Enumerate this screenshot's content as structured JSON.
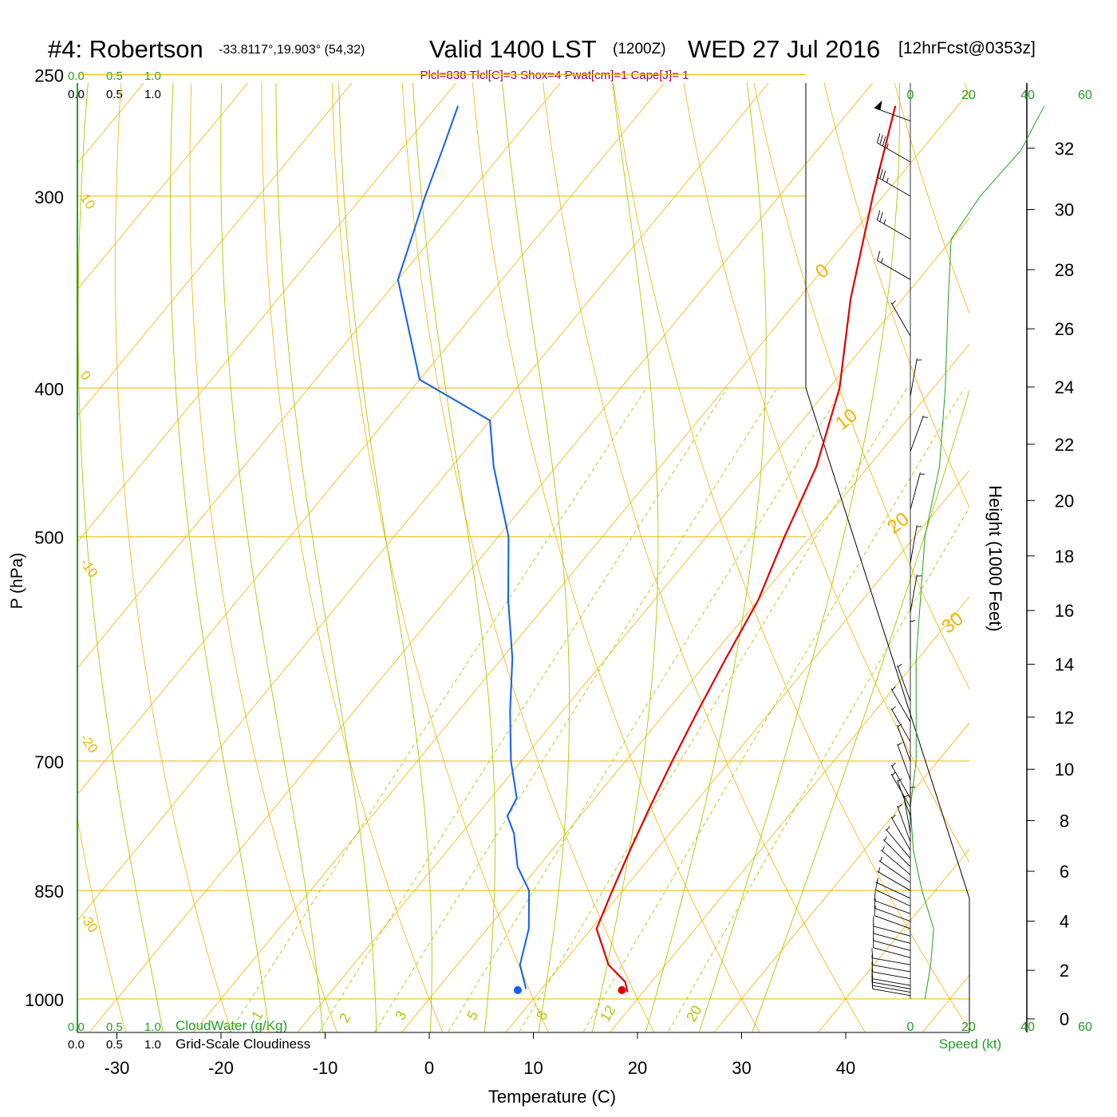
{
  "header": {
    "station": "#4: Robertson",
    "coords": "-33.8117°,19.903° (54,32)",
    "valid": "Valid 1400 LST",
    "zulu": "(1200Z)",
    "date": "WED 27 Jul 2016",
    "forecast": "[12hrFcst@0353z]",
    "indices": "Plcl=838 Tlcl[C]=3 Shox=4 Pwat[cm]=1 Cape[J]= 1"
  },
  "colors": {
    "isobar": "#f0b400",
    "dry_adiabat": "#f0b400",
    "moist_adiabat": "#a8cc00",
    "mixing_ratio": "#a8cc00",
    "temperature": "#e00000",
    "dewpoint": "#1060f0",
    "speed_axis": "#20a020",
    "title_indices": "#a0005a"
  },
  "chart_data": {
    "type": "line",
    "xlabel": "Temperature (C)",
    "ylabel": "P (hPa)",
    "y2label": "Height (1000 Feet)",
    "x_ticks": [
      -30,
      -20,
      -10,
      0,
      10,
      20,
      30,
      40
    ],
    "p_ticks": [
      250,
      300,
      400,
      500,
      700,
      850,
      1000
    ],
    "height_ticks": [
      0,
      2,
      4,
      6,
      8,
      10,
      12,
      14,
      16,
      18,
      20,
      22,
      24,
      26,
      28,
      30,
      32
    ],
    "cloud_scale_top": {
      "green": [
        "0.0",
        "0.5",
        "1.0"
      ],
      "black": [
        "0.0",
        "0.5",
        "1.0"
      ]
    },
    "cloud_scale_bottom": {
      "green": [
        "0.0",
        "0.5",
        "1.0"
      ],
      "black": [
        "0.0",
        "0.5",
        "1.0"
      ],
      "cloudwater_label": "CloudWater (g/Kg)",
      "cloudiness_label": "Grid-Scale Cloudiness"
    },
    "speed_ticks": [
      "0",
      "20",
      "40",
      "60"
    ],
    "speed_label": "Speed (kt)",
    "dry_adiabat_labels": [
      "10",
      "0",
      "-10",
      "-20",
      "-30"
    ],
    "upper_labels": [
      "0",
      "10",
      "20",
      "30"
    ],
    "mixing_ratio_labels": [
      "1",
      "2",
      "3",
      "5",
      "8",
      "12",
      "20"
    ],
    "series": [
      {
        "name": "Temperature",
        "unit": "C",
        "points": [
          [
            990,
            18.5
          ],
          [
            975,
            17.5
          ],
          [
            950,
            14.5
          ],
          [
            900,
            10.5
          ],
          [
            850,
            9
          ],
          [
            800,
            7.5
          ],
          [
            750,
            6
          ],
          [
            700,
            4.5
          ],
          [
            650,
            3
          ],
          [
            600,
            1.5
          ],
          [
            550,
            0
          ],
          [
            500,
            -2.5
          ],
          [
            450,
            -5
          ],
          [
            400,
            -9
          ],
          [
            350,
            -15
          ],
          [
            300,
            -21
          ],
          [
            262,
            -26
          ]
        ]
      },
      {
        "name": "Dewpoint",
        "unit": "C",
        "points": [
          [
            985,
            8.5
          ],
          [
            950,
            6
          ],
          [
            900,
            4
          ],
          [
            850,
            1
          ],
          [
            820,
            -2
          ],
          [
            780,
            -5
          ],
          [
            760,
            -7
          ],
          [
            740,
            -7.5
          ],
          [
            700,
            -11
          ],
          [
            650,
            -15
          ],
          [
            600,
            -19
          ],
          [
            550,
            -24
          ],
          [
            500,
            -29
          ],
          [
            450,
            -36
          ],
          [
            420,
            -40
          ],
          [
            395,
            -50
          ],
          [
            340,
            -60
          ],
          [
            300,
            -64
          ],
          [
            280,
            -66
          ],
          [
            262,
            -68
          ]
        ]
      }
    ],
    "surface_temperature": 18.5,
    "surface_dewpoint": 8.5,
    "wind_speed_profile": [
      [
        1000,
        5
      ],
      [
        950,
        7
      ],
      [
        900,
        8
      ],
      [
        850,
        4
      ],
      [
        800,
        1
      ],
      [
        750,
        0
      ],
      [
        700,
        2
      ],
      [
        600,
        2
      ],
      [
        500,
        5
      ],
      [
        450,
        10
      ],
      [
        400,
        12
      ],
      [
        350,
        13
      ],
      [
        320,
        14
      ],
      [
        300,
        24
      ],
      [
        280,
        38
      ],
      [
        262,
        46
      ]
    ],
    "wind_barbs": [
      {
        "p": 995,
        "dir": 280,
        "spd": 10
      },
      {
        "p": 990,
        "dir": 280,
        "spd": 10
      },
      {
        "p": 985,
        "dir": 280,
        "spd": 10
      },
      {
        "p": 980,
        "dir": 280,
        "spd": 10
      },
      {
        "p": 970,
        "dir": 280,
        "spd": 10
      },
      {
        "p": 960,
        "dir": 280,
        "spd": 10
      },
      {
        "p": 950,
        "dir": 280,
        "spd": 10
      },
      {
        "p": 940,
        "dir": 285,
        "spd": 10
      },
      {
        "p": 930,
        "dir": 285,
        "spd": 10
      },
      {
        "p": 920,
        "dir": 285,
        "spd": 10
      },
      {
        "p": 910,
        "dir": 285,
        "spd": 10
      },
      {
        "p": 900,
        "dir": 290,
        "spd": 10
      },
      {
        "p": 890,
        "dir": 290,
        "spd": 10
      },
      {
        "p": 880,
        "dir": 290,
        "spd": 10
      },
      {
        "p": 870,
        "dir": 295,
        "spd": 10
      },
      {
        "p": 860,
        "dir": 295,
        "spd": 5
      },
      {
        "p": 850,
        "dir": 300,
        "spd": 5
      },
      {
        "p": 840,
        "dir": 305,
        "spd": 5
      },
      {
        "p": 830,
        "dir": 310,
        "spd": 5
      },
      {
        "p": 820,
        "dir": 315,
        "spd": 5
      },
      {
        "p": 810,
        "dir": 320,
        "spd": 5
      },
      {
        "p": 800,
        "dir": 330,
        "spd": 5
      },
      {
        "p": 790,
        "dir": 340,
        "spd": 5
      },
      {
        "p": 780,
        "dir": 350,
        "spd": 5
      },
      {
        "p": 770,
        "dir": 0,
        "spd": 5
      },
      {
        "p": 760,
        "dir": 340,
        "spd": 5
      },
      {
        "p": 750,
        "dir": 330,
        "spd": 5
      },
      {
        "p": 740,
        "dir": 330,
        "spd": 5
      },
      {
        "p": 720,
        "dir": 340,
        "spd": 5
      },
      {
        "p": 700,
        "dir": 340,
        "spd": 5
      },
      {
        "p": 680,
        "dir": 330,
        "spd": 5
      },
      {
        "p": 660,
        "dir": 330,
        "spd": 5
      },
      {
        "p": 640,
        "dir": 340,
        "spd": 5
      },
      {
        "p": 600,
        "dir": 0,
        "spd": 5
      },
      {
        "p": 560,
        "dir": 10,
        "spd": 5
      },
      {
        "p": 520,
        "dir": 10,
        "spd": 5
      },
      {
        "p": 480,
        "dir": 15,
        "spd": 5
      },
      {
        "p": 440,
        "dir": 20,
        "spd": 5
      },
      {
        "p": 405,
        "dir": 10,
        "spd": 5
      },
      {
        "p": 370,
        "dir": 330,
        "spd": 5
      },
      {
        "p": 340,
        "dir": 300,
        "spd": 15
      },
      {
        "p": 320,
        "dir": 300,
        "spd": 25
      },
      {
        "p": 300,
        "dir": 300,
        "spd": 35
      },
      {
        "p": 285,
        "dir": 300,
        "spd": 35
      },
      {
        "p": 268,
        "dir": 290,
        "spd": 50
      }
    ]
  }
}
